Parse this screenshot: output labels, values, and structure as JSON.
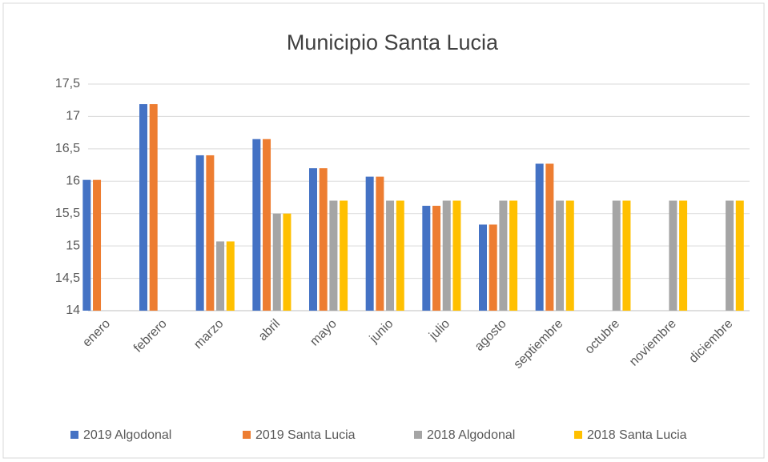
{
  "chart_data": {
    "type": "bar",
    "title": "Municipio Santa Lucia",
    "categories": [
      "enero",
      "febrero",
      "marzo",
      "abril",
      "mayo",
      "junio",
      "julio",
      "agosto",
      "septiembre",
      "octubre",
      "noviembre",
      "diciembre"
    ],
    "series": [
      {
        "name": "2019 Algodonal",
        "color": "#4472c4",
        "values": [
          16.02,
          17.19,
          16.4,
          16.65,
          16.2,
          16.07,
          15.62,
          15.33,
          16.27,
          null,
          null,
          null
        ]
      },
      {
        "name": "2019 Santa Lucia",
        "color": "#ed7d31",
        "values": [
          16.02,
          17.19,
          16.4,
          16.65,
          16.2,
          16.07,
          15.62,
          15.33,
          16.27,
          null,
          null,
          null
        ]
      },
      {
        "name": "2018 Algodonal",
        "color": "#a5a5a5",
        "values": [
          null,
          null,
          15.07,
          15.5,
          15.7,
          15.7,
          15.7,
          15.7,
          15.7,
          15.7,
          15.7,
          15.7
        ]
      },
      {
        "name": "2018 Santa Lucia",
        "color": "#ffc000",
        "values": [
          null,
          null,
          15.07,
          15.5,
          15.7,
          15.7,
          15.7,
          15.7,
          15.7,
          15.7,
          15.7,
          15.7
        ]
      }
    ],
    "ylim": [
      14,
      17.5
    ],
    "yticks": [
      14,
      {
        "value": 14.5,
        "label": "14,5"
      },
      15,
      {
        "value": 15.5,
        "label": "15,5"
      },
      16,
      {
        "value": 16.5,
        "label": "16,5"
      },
      17,
      {
        "value": 17.5,
        "label": "17,5"
      }
    ],
    "grid": true,
    "legend": "bottom"
  }
}
